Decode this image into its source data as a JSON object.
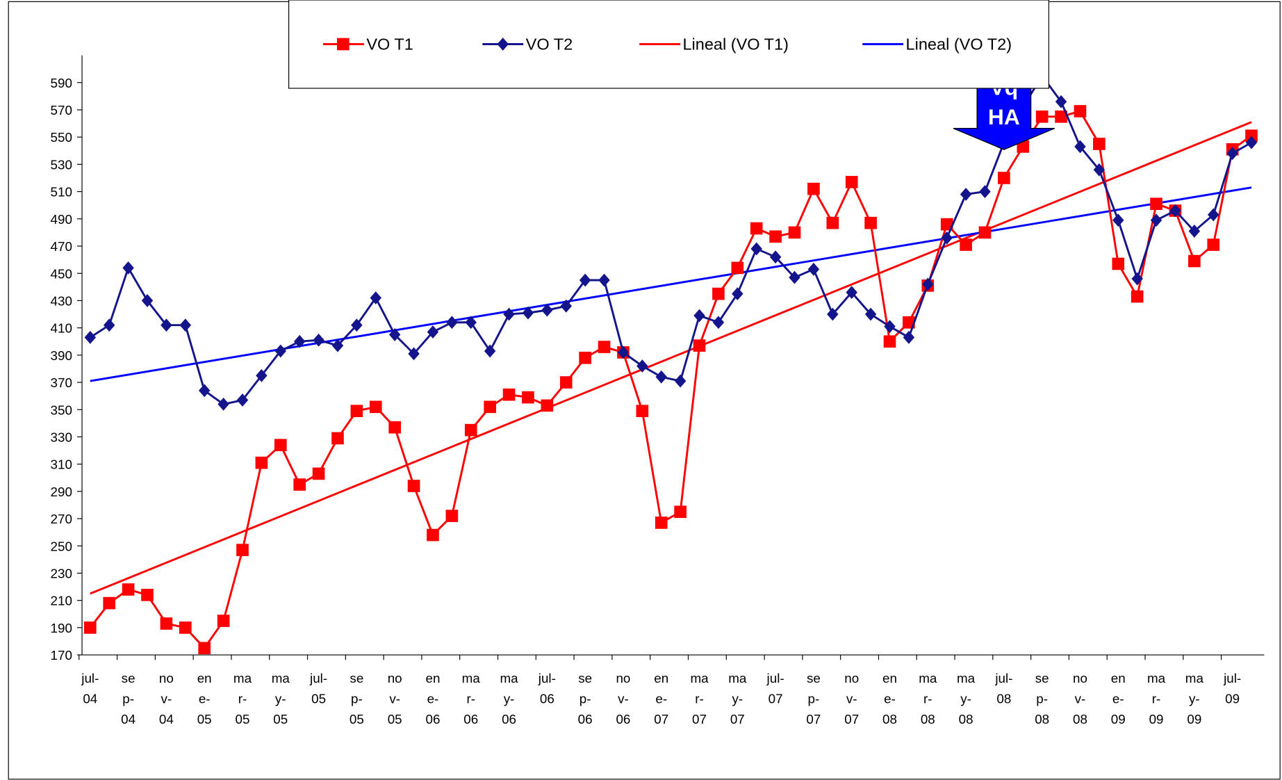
{
  "chart_data": {
    "type": "line",
    "categories": [
      "jul-04",
      null,
      "sep-04",
      null,
      "nov-04",
      null,
      "ene-05",
      null,
      "mar-05",
      null,
      "may-05",
      null,
      "jul-05",
      null,
      "sep-05",
      null,
      "nov-05",
      null,
      "ene-06",
      null,
      "mar-06",
      null,
      "may-06",
      null,
      "jul-06",
      null,
      "sep-06",
      null,
      "nov-06",
      null,
      "ene-07",
      null,
      "mar-07",
      null,
      "may-07",
      null,
      "jul-07",
      null,
      "sep-07",
      null,
      "nov-07",
      null,
      "ene-08",
      null,
      "mar-08",
      null,
      "may-08",
      null,
      "jul-08",
      null,
      "sep-08",
      null,
      "nov-08",
      null,
      "ene-09",
      null,
      "mar-09",
      null,
      "may-09",
      null,
      "jul-09",
      null
    ],
    "series": [
      {
        "name": "VO T1",
        "color": "#ff0000",
        "marker": "square",
        "values": [
          190,
          208,
          218,
          214,
          193,
          190,
          175,
          195,
          247,
          311,
          324,
          295,
          303,
          329,
          349,
          352,
          337,
          294,
          258,
          272,
          335,
          352,
          361,
          359,
          353,
          370,
          388,
          396,
          392,
          349,
          267,
          275,
          397,
          435,
          454,
          483,
          477,
          480,
          512,
          487,
          517,
          487,
          400,
          414,
          441,
          486,
          471,
          480,
          520,
          543,
          565,
          565,
          569,
          545,
          457,
          433,
          501,
          496,
          459,
          471,
          541,
          551
        ]
      },
      {
        "name": "VO T2",
        "color": "#14148c",
        "marker": "diamond",
        "values": [
          403,
          412,
          454,
          430,
          412,
          412,
          364,
          354,
          357,
          375,
          393,
          400,
          401,
          397,
          412,
          432,
          405,
          391,
          407,
          414,
          414,
          393,
          420,
          421,
          423,
          426,
          445,
          445,
          392,
          382,
          374,
          371,
          419,
          414,
          435,
          468,
          462,
          447,
          453,
          420,
          436,
          420,
          411,
          403,
          442,
          476,
          508,
          510,
          546,
          572,
          595,
          576,
          543,
          526,
          489,
          446,
          489,
          496,
          481,
          493,
          538,
          546
        ]
      },
      {
        "name": "Lineal (VO T1)",
        "color": "#ff0000",
        "trend": true,
        "start": 215,
        "end": 561
      },
      {
        "name": "Lineal (VO T2)",
        "color": "#0000ff",
        "trend": true,
        "start": 371,
        "end": 513
      }
    ],
    "ylim": [
      170,
      610
    ],
    "yticks": [
      170,
      190,
      210,
      230,
      250,
      270,
      290,
      310,
      330,
      350,
      370,
      390,
      410,
      430,
      450,
      470,
      490,
      510,
      530,
      550,
      570,
      590
    ],
    "annotation": {
      "lines": [
        "Vq",
        "HA"
      ],
      "color": "#0000ff",
      "category_index": 48
    },
    "legend": "top"
  }
}
